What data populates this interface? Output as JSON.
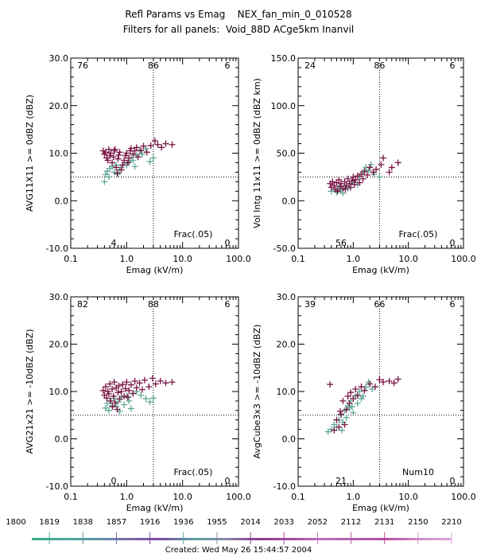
{
  "title_line1": "Refl Params vs Emag    NEX_fan_min_0_010528",
  "title_line2": "Filters for all panels:  Void_88D ACge5km Inanvil",
  "footer": "Created: Wed May 26 15:44:57 2004",
  "colors": {
    "early": "#5fa896",
    "late": "#7a1646",
    "axis": "#000000"
  },
  "timebar": {
    "labels": [
      "1800",
      "1819",
      "1838",
      "1857",
      "1916",
      "1936",
      "1955",
      "2014",
      "2033",
      "2052",
      "2112",
      "2131",
      "2150",
      "2210"
    ],
    "gradient": [
      "#3aa88a",
      "#4aa89a",
      "#5e96a8",
      "#7a6aa8",
      "#7a4aa0",
      "#5ca0a0",
      "#8a8aa8",
      "#8a3a8a",
      "#a04aa0",
      "#c070c0",
      "#b060a8",
      "#b84a9c",
      "#d08ac8",
      "#e0a8e0"
    ]
  },
  "chart_data": [
    {
      "type": "scatter",
      "xlabel": "Emag (kV/m)",
      "ylabel": "AVG11X11 >= 0dBZ (dBZ)",
      "xscale": "log",
      "xlim": [
        0.1,
        100.0
      ],
      "ylim": [
        -10.0,
        30.0
      ],
      "xticks": [
        "0.1",
        "1.0",
        "10.0",
        "100.0"
      ],
      "yticks": [
        "-10.0",
        "0.0",
        "10.0",
        "20.0",
        "30.0"
      ],
      "xref": 3.0,
      "yref": 5.0,
      "counts": {
        "ul": "76",
        "uc": "86",
        "ur": "6",
        "lc": "4",
        "lr": "0"
      },
      "annotation": "Frac(.05)",
      "series": [
        {
          "group": "early",
          "points": [
            [
              0.4,
              4.0
            ],
            [
              0.42,
              5.5
            ],
            [
              0.45,
              6.2
            ],
            [
              0.48,
              5.0
            ],
            [
              0.5,
              6.8
            ],
            [
              0.55,
              7.2
            ],
            [
              0.6,
              6.0
            ],
            [
              0.65,
              7.5
            ],
            [
              0.7,
              5.6
            ],
            [
              0.75,
              6.5
            ],
            [
              0.8,
              7.0
            ],
            [
              0.9,
              8.0
            ],
            [
              1.0,
              7.5
            ],
            [
              1.1,
              8.2
            ],
            [
              1.2,
              9.0
            ],
            [
              1.3,
              8.5
            ],
            [
              1.5,
              9.5
            ],
            [
              1.7,
              10.5
            ],
            [
              1.9,
              9.8
            ],
            [
              2.2,
              11.0
            ],
            [
              2.6,
              8.2
            ],
            [
              3.0,
              9.0
            ],
            [
              1.4,
              7.2
            ]
          ]
        },
        {
          "group": "late",
          "points": [
            [
              0.38,
              10.5
            ],
            [
              0.4,
              9.8
            ],
            [
              0.42,
              10.2
            ],
            [
              0.44,
              9.0
            ],
            [
              0.46,
              8.5
            ],
            [
              0.48,
              10.8
            ],
            [
              0.5,
              9.5
            ],
            [
              0.52,
              10.0
            ],
            [
              0.55,
              8.0
            ],
            [
              0.58,
              9.2
            ],
            [
              0.6,
              10.5
            ],
            [
              0.65,
              7.0
            ],
            [
              0.7,
              8.8
            ],
            [
              0.72,
              9.6
            ],
            [
              0.75,
              10.2
            ],
            [
              0.8,
              6.5
            ],
            [
              0.85,
              7.5
            ],
            [
              0.9,
              8.5
            ],
            [
              0.95,
              9.5
            ],
            [
              1.0,
              10.0
            ],
            [
              1.05,
              8.0
            ],
            [
              1.1,
              9.0
            ],
            [
              1.15,
              10.5
            ],
            [
              1.2,
              11.0
            ],
            [
              1.3,
              9.8
            ],
            [
              1.4,
              10.5
            ],
            [
              1.5,
              11.2
            ],
            [
              1.6,
              9.2
            ],
            [
              1.8,
              10.6
            ],
            [
              2.0,
              11.5
            ],
            [
              2.3,
              10.2
            ],
            [
              2.7,
              11.6
            ],
            [
              3.2,
              12.6
            ],
            [
              3.6,
              11.8
            ],
            [
              4.2,
              11.2
            ],
            [
              5.0,
              12.0
            ],
            [
              6.5,
              11.8
            ],
            [
              0.68,
              5.8
            ],
            [
              0.62,
              10.8
            ]
          ]
        }
      ]
    },
    {
      "type": "scatter",
      "xlabel": "Emag (kV/m)",
      "ylabel": "Vol Intg 11x11 >= 0dBZ (dBZ km)",
      "xscale": "log",
      "xlim": [
        0.1,
        100.0
      ],
      "ylim": [
        -50.0,
        150.0
      ],
      "xticks": [
        "0.1",
        "1.0",
        "10.0",
        "100.0"
      ],
      "yticks": [
        "-50.0",
        "0.0",
        "50.0",
        "100.0",
        "150.0"
      ],
      "xref": 3.0,
      "yref": 25.0,
      "counts": {
        "ul": "24",
        "uc": "86",
        "ur": "6",
        "lc": "56",
        "lr": "0"
      },
      "annotation": "Frac(.05)",
      "series": [
        {
          "group": "early",
          "points": [
            [
              0.4,
              10.0
            ],
            [
              0.45,
              12.0
            ],
            [
              0.5,
              9.0
            ],
            [
              0.55,
              14.0
            ],
            [
              0.6,
              11.0
            ],
            [
              0.7,
              15.0
            ],
            [
              0.8,
              13.0
            ],
            [
              0.9,
              18.0
            ],
            [
              1.0,
              20.0
            ],
            [
              1.1,
              22.0
            ],
            [
              1.3,
              25.0
            ],
            [
              1.5,
              30.0
            ],
            [
              1.7,
              35.0
            ],
            [
              1.9,
              32.0
            ],
            [
              2.1,
              38.0
            ],
            [
              2.4,
              28.0
            ],
            [
              3.0,
              25.0
            ],
            [
              1.2,
              17.0
            ],
            [
              0.65,
              8.0
            ]
          ]
        },
        {
          "group": "late",
          "points": [
            [
              0.38,
              18.0
            ],
            [
              0.4,
              14.0
            ],
            [
              0.42,
              20.0
            ],
            [
              0.45,
              16.0
            ],
            [
              0.48,
              12.0
            ],
            [
              0.5,
              19.0
            ],
            [
              0.55,
              22.0
            ],
            [
              0.58,
              15.0
            ],
            [
              0.6,
              18.0
            ],
            [
              0.65,
              13.0
            ],
            [
              0.7,
              20.0
            ],
            [
              0.75,
              16.0
            ],
            [
              0.8,
              23.0
            ],
            [
              0.85,
              18.0
            ],
            [
              0.9,
              14.0
            ],
            [
              0.95,
              21.0
            ],
            [
              1.0,
              25.0
            ],
            [
              1.05,
              17.0
            ],
            [
              1.1,
              22.0
            ],
            [
              1.2,
              26.0
            ],
            [
              1.3,
              19.0
            ],
            [
              1.4,
              28.0
            ],
            [
              1.5,
              23.0
            ],
            [
              1.6,
              31.0
            ],
            [
              1.8,
              27.0
            ],
            [
              2.0,
              35.0
            ],
            [
              2.3,
              30.0
            ],
            [
              2.6,
              33.0
            ],
            [
              3.2,
              38.0
            ],
            [
              3.5,
              45.0
            ],
            [
              4.5,
              30.0
            ],
            [
              5.0,
              35.0
            ],
            [
              6.5,
              40.0
            ],
            [
              0.52,
              10.0
            ],
            [
              0.72,
              12.0
            ]
          ]
        }
      ]
    },
    {
      "type": "scatter",
      "xlabel": "Emag (kV/m)",
      "ylabel": "AVG21x21 >= -10dBZ (dBZ)",
      "xscale": "log",
      "xlim": [
        0.1,
        100.0
      ],
      "ylim": [
        -10.0,
        30.0
      ],
      "xticks": [
        "0.1",
        "1.0",
        "10.0",
        "100.0"
      ],
      "yticks": [
        "-10.0",
        "0.0",
        "10.0",
        "20.0",
        "30.0"
      ],
      "xref": 3.0,
      "yref": 5.0,
      "counts": {
        "ul": "82",
        "uc": "88",
        "ur": "6",
        "lc": "0",
        "lr": "0"
      },
      "annotation": "Frac(.05)",
      "series": [
        {
          "group": "early",
          "points": [
            [
              0.42,
              6.5
            ],
            [
              0.45,
              7.5
            ],
            [
              0.48,
              6.0
            ],
            [
              0.5,
              8.0
            ],
            [
              0.55,
              7.0
            ],
            [
              0.6,
              8.5
            ],
            [
              0.65,
              6.8
            ],
            [
              0.7,
              7.8
            ],
            [
              0.8,
              8.8
            ],
            [
              0.9,
              7.2
            ],
            [
              1.0,
              9.0
            ],
            [
              1.1,
              8.0
            ],
            [
              1.3,
              9.5
            ],
            [
              1.5,
              10.0
            ],
            [
              1.8,
              9.2
            ],
            [
              2.2,
              8.5
            ],
            [
              2.6,
              7.8
            ],
            [
              3.0,
              8.6
            ],
            [
              1.2,
              6.4
            ],
            [
              0.75,
              5.8
            ]
          ]
        },
        {
          "group": "late",
          "points": [
            [
              0.38,
              10.2
            ],
            [
              0.4,
              9.2
            ],
            [
              0.42,
              11.0
            ],
            [
              0.44,
              8.6
            ],
            [
              0.46,
              10.0
            ],
            [
              0.48,
              9.5
            ],
            [
              0.5,
              11.6
            ],
            [
              0.52,
              8.0
            ],
            [
              0.55,
              10.5
            ],
            [
              0.58,
              9.0
            ],
            [
              0.6,
              12.0
            ],
            [
              0.62,
              7.6
            ],
            [
              0.65,
              10.8
            ],
            [
              0.7,
              9.8
            ],
            [
              0.72,
              11.2
            ],
            [
              0.75,
              8.4
            ],
            [
              0.8,
              10.0
            ],
            [
              0.85,
              11.5
            ],
            [
              0.9,
              9.0
            ],
            [
              0.95,
              10.6
            ],
            [
              1.0,
              12.0
            ],
            [
              1.05,
              8.8
            ],
            [
              1.1,
              10.2
            ],
            [
              1.2,
              11.4
            ],
            [
              1.3,
              9.6
            ],
            [
              1.4,
              12.2
            ],
            [
              1.5,
              10.8
            ],
            [
              1.7,
              11.8
            ],
            [
              1.9,
              10.4
            ],
            [
              2.1,
              12.4
            ],
            [
              2.5,
              11.0
            ],
            [
              2.9,
              12.8
            ],
            [
              3.3,
              11.6
            ],
            [
              4.0,
              12.2
            ],
            [
              5.0,
              11.8
            ],
            [
              6.5,
              12.0
            ],
            [
              0.56,
              6.8
            ],
            [
              0.68,
              6.2
            ]
          ]
        }
      ]
    },
    {
      "type": "scatter",
      "xlabel": "Emag (kV/m)",
      "ylabel": "AvgCube3x3 >= -10dBZ (dBZ)",
      "xscale": "log",
      "xlim": [
        0.1,
        100.0
      ],
      "ylim": [
        -10.0,
        30.0
      ],
      "xticks": [
        "0.1",
        "1.0",
        "10.0",
        "100.0"
      ],
      "yticks": [
        "-10.0",
        "0.0",
        "10.0",
        "20.0",
        "30.0"
      ],
      "xref": 3.0,
      "yref": 5.0,
      "counts": {
        "ul": "39",
        "uc": "66",
        "ur": "6",
        "lc": "21",
        "lr": "0"
      },
      "annotation": "Num10",
      "series": [
        {
          "group": "early",
          "points": [
            [
              0.35,
              1.5
            ],
            [
              0.4,
              2.0
            ],
            [
              0.45,
              3.0
            ],
            [
              0.5,
              2.5
            ],
            [
              0.55,
              4.0
            ],
            [
              0.6,
              5.0
            ],
            [
              0.65,
              3.5
            ],
            [
              0.7,
              6.0
            ],
            [
              0.75,
              4.5
            ],
            [
              0.8,
              7.0
            ],
            [
              0.85,
              6.5
            ],
            [
              0.9,
              8.0
            ],
            [
              1.0,
              5.5
            ],
            [
              1.1,
              9.0
            ],
            [
              1.2,
              7.5
            ],
            [
              1.3,
              10.0
            ],
            [
              1.5,
              9.0
            ],
            [
              1.7,
              11.0
            ],
            [
              1.9,
              12.0
            ],
            [
              2.2,
              10.5
            ],
            [
              0.62,
              1.8
            ],
            [
              0.95,
              6.8
            ],
            [
              1.4,
              8.5
            ]
          ]
        },
        {
          "group": "late",
          "points": [
            [
              0.38,
              11.5
            ],
            [
              0.45,
              1.8
            ],
            [
              0.5,
              4.0
            ],
            [
              0.55,
              2.5
            ],
            [
              0.6,
              5.2
            ],
            [
              0.65,
              8.0
            ],
            [
              0.7,
              3.0
            ],
            [
              0.75,
              6.2
            ],
            [
              0.8,
              9.0
            ],
            [
              0.85,
              7.5
            ],
            [
              0.9,
              9.8
            ],
            [
              1.0,
              8.5
            ],
            [
              1.1,
              10.5
            ],
            [
              1.2,
              9.2
            ],
            [
              1.4,
              11.0
            ],
            [
              1.6,
              10.2
            ],
            [
              2.0,
              11.6
            ],
            [
              2.5,
              11.0
            ],
            [
              3.0,
              12.5
            ],
            [
              3.5,
              12.0
            ],
            [
              4.5,
              12.2
            ],
            [
              5.5,
              11.8
            ],
            [
              6.5,
              12.6
            ],
            [
              0.58,
              5.8
            ]
          ]
        }
      ]
    }
  ]
}
